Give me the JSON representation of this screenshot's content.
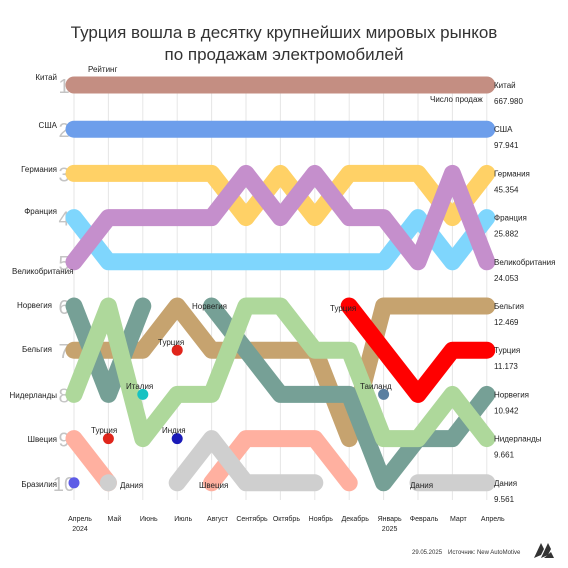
{
  "title_line1": "Турция вошла в десятку крупнейших мировых рынков",
  "title_line2": "по продажам электромобилей",
  "footer": {
    "date": "29.05.2025",
    "source": "Источник: New AutoMotive"
  },
  "logo": {
    "name": "aa-logo"
  },
  "chart_data": {
    "type": "line",
    "chart_subtype": "bump (ranking over time)",
    "title": "Турция вошла в десятку крупнейших мировых рынков по продажам электромобилей",
    "y_label": "Рейтинг",
    "right_header": "Число продаж",
    "y_ticks": [
      "1",
      "2",
      "3",
      "4",
      "5",
      "6",
      "7",
      "8",
      "9",
      "10"
    ],
    "ylim": [
      1,
      10
    ],
    "y_inverted": true,
    "x": [
      "Апрель|2024",
      "Май",
      "Июнь",
      "Июль",
      "Август",
      "Сентябрь",
      "Октябрь",
      "Ноябрь",
      "Декабрь",
      "Январь|2025",
      "Февраль",
      "Март",
      "Апрель"
    ],
    "grid": true,
    "series": [
      {
        "name": "Китай",
        "color": "#c48e82",
        "ranks": [
          1,
          1,
          1,
          1,
          1,
          1,
          1,
          1,
          1,
          1,
          1,
          1,
          1
        ],
        "last_sales": "667.980"
      },
      {
        "name": "США",
        "color": "#6d9eeb",
        "ranks": [
          2,
          2,
          2,
          2,
          2,
          2,
          2,
          2,
          2,
          2,
          2,
          2,
          2
        ],
        "last_sales": "97.941"
      },
      {
        "name": "Германия",
        "color": "#ffd166",
        "ranks": [
          3,
          3,
          3,
          3,
          3,
          4,
          3,
          4,
          3,
          3,
          3,
          4,
          3
        ],
        "last_sales": "45.354"
      },
      {
        "name": "Франция",
        "color": "#7fd6fd",
        "ranks": [
          4,
          5,
          5,
          5,
          5,
          5,
          5,
          5,
          5,
          5,
          4,
          5,
          4
        ],
        "last_sales": "25.882"
      },
      {
        "name": "Великобритания",
        "color": "#c58fcc",
        "ranks": [
          5,
          4,
          4,
          4,
          4,
          3,
          4,
          3,
          4,
          4,
          5,
          3,
          5
        ],
        "last_sales": "24.053"
      },
      {
        "name": "Бельгия",
        "color": "#c6a36f",
        "ranks": [
          7,
          7,
          7,
          6,
          7,
          7,
          7,
          7,
          9,
          6,
          6,
          6,
          6
        ],
        "last_sales": "12.469"
      },
      {
        "name": "Турция",
        "color": "#ff0000",
        "ranks": [
          null,
          null,
          null,
          null,
          null,
          null,
          null,
          null,
          6,
          7,
          8,
          7,
          7
        ],
        "last_sales": "11.173"
      },
      {
        "name": "Норвегия",
        "color": "#76a096",
        "ranks": [
          6,
          8,
          6,
          null,
          6,
          7,
          8,
          8,
          8,
          10,
          9,
          9,
          8
        ],
        "last_sales": "10.942"
      },
      {
        "name": "Нидерланды",
        "color": "#aed89b",
        "ranks": [
          8,
          6,
          9,
          8,
          8,
          6,
          6,
          7,
          7,
          9,
          9,
          8,
          9
        ],
        "last_sales": "9.661"
      },
      {
        "name": "Швеция",
        "color": "#ffb0a0",
        "ranks": [
          9,
          10,
          null,
          null,
          10,
          9,
          9,
          9,
          10,
          null,
          null,
          null,
          null
        ],
        "last_sales": ""
      },
      {
        "name": "Дания",
        "color": "#cfcfcf",
        "ranks": [
          null,
          10,
          null,
          10,
          9,
          10,
          10,
          10,
          null,
          null,
          10,
          10,
          10
        ],
        "last_sales": "9.561"
      }
    ],
    "single_points": [
      {
        "name": "Бразилия",
        "color": "#5e5ce6",
        "month_index": 0,
        "rank": 10
      },
      {
        "name": "Турция",
        "color": "#e0251b",
        "month_index": 1,
        "rank": 9
      },
      {
        "name": "Италия",
        "color": "#17c2c2",
        "month_index": 2,
        "rank": 8
      },
      {
        "name": "Турция",
        "color": "#e0251b",
        "month_index": 3,
        "rank": 7
      },
      {
        "name": "Индия",
        "color": "#1a1ab8",
        "month_index": 3,
        "rank": 9
      },
      {
        "name": "Таиланд",
        "color": "#5a7fa0",
        "month_index": 9,
        "rank": 8
      }
    ],
    "left_labels": [
      "Китай",
      "США",
      "Германия",
      "Франция",
      "Великобритания",
      "Норвегия",
      "Бельгия",
      "Нидерланды",
      "Швеция",
      "Бразилия"
    ],
    "inline_labels": [
      "Норвегия",
      "Турция",
      "Италия",
      "Турция",
      "Индия",
      "Дания",
      "Швеция",
      "Таиланд",
      "Дания"
    ]
  }
}
